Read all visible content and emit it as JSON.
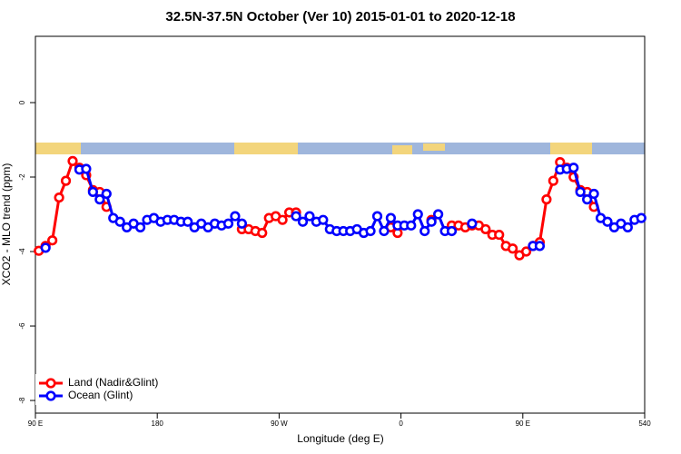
{
  "chart_data": {
    "type": "line",
    "title": "32.5N-37.5N October (Ver 10)   2015-01-01 to 2020-12-18",
    "xlabel": "Longitude (deg E)",
    "ylabel": "XCO2 - MLO trend (ppm)",
    "x": [
      92.5,
      97.5,
      102.5,
      107.5,
      112.5,
      117.5,
      122.5,
      127.5,
      132.5,
      137.5,
      142.5,
      147.5,
      152.5,
      157.5,
      162.5,
      167.5,
      172.5,
      177.5,
      182.5,
      187.5,
      192.5,
      197.5,
      202.5,
      207.5,
      212.5,
      217.5,
      222.5,
      227.5,
      232.5,
      237.5,
      242.5,
      247.5,
      252.5,
      257.5,
      262.5,
      267.5,
      272.5,
      277.5,
      282.5,
      287.5,
      292.5,
      297.5,
      302.5,
      307.5,
      312.5,
      317.5,
      322.5,
      327.5,
      332.5,
      337.5,
      342.5,
      347.5,
      352.5,
      357.5,
      362.5,
      367.5,
      372.5,
      377.5,
      382.5,
      387.5,
      392.5,
      397.5,
      402.5,
      407.5,
      412.5,
      417.5,
      422.5,
      427.5,
      432.5,
      437.5,
      442.5,
      447.5,
      452.5,
      457.5,
      462.5,
      467.5,
      472.5,
      477.5,
      482.5,
      487.5,
      492.5,
      497.5,
      502.5,
      507.5,
      512.5,
      517.5,
      522.5,
      527.5,
      532.5,
      537.5
    ],
    "series": [
      {
        "name": "Land (Nadir&Glint)",
        "color": "#ff0000",
        "values": [
          -3.98,
          -3.85,
          -3.7,
          -2.55,
          -2.1,
          -1.57,
          -1.75,
          -1.95,
          -2.35,
          -2.4,
          -2.8,
          null,
          null,
          null,
          null,
          null,
          null,
          null,
          null,
          null,
          null,
          null,
          null,
          null,
          null,
          null,
          null,
          null,
          null,
          null,
          -3.4,
          -3.4,
          -3.45,
          -3.5,
          -3.1,
          -3.05,
          -3.15,
          -2.95,
          -2.95,
          null,
          null,
          null,
          null,
          null,
          null,
          null,
          null,
          null,
          null,
          null,
          null,
          null,
          -3.35,
          -3.5,
          null,
          null,
          null,
          null,
          -3.15,
          null,
          null,
          -3.3,
          -3.3,
          -3.35,
          -3.3,
          -3.3,
          -3.4,
          -3.55,
          -3.55,
          -3.85,
          -3.92,
          -4.1,
          -4.0,
          -3.85,
          -3.75,
          -2.6,
          -2.1,
          -1.6,
          -1.75,
          -2.0,
          -2.35,
          -2.4,
          -2.8,
          null,
          null,
          null,
          null,
          null,
          null,
          null
        ]
      },
      {
        "name": "Ocean (Glint)",
        "color": "#0000ff",
        "values": [
          null,
          -3.9,
          null,
          null,
          null,
          null,
          -1.8,
          -1.78,
          -2.4,
          -2.6,
          -2.45,
          -3.1,
          -3.2,
          -3.35,
          -3.25,
          -3.35,
          -3.15,
          -3.1,
          -3.2,
          -3.15,
          -3.15,
          -3.2,
          -3.2,
          -3.35,
          -3.25,
          -3.35,
          -3.25,
          -3.3,
          -3.25,
          -3.05,
          -3.25,
          null,
          null,
          null,
          null,
          null,
          null,
          null,
          -3.05,
          -3.2,
          -3.05,
          -3.2,
          -3.15,
          -3.4,
          -3.45,
          -3.45,
          -3.45,
          -3.4,
          -3.5,
          -3.45,
          -3.05,
          -3.45,
          -3.1,
          -3.3,
          -3.3,
          -3.3,
          -3.0,
          -3.45,
          -3.2,
          -3.0,
          -3.45,
          -3.45,
          null,
          null,
          -3.25,
          null,
          null,
          null,
          null,
          null,
          null,
          null,
          null,
          -3.85,
          -3.85,
          null,
          null,
          -1.8,
          -1.78,
          -1.75,
          -2.4,
          -2.6,
          -2.45,
          -3.1,
          -3.2,
          -3.35,
          -3.25,
          -3.35,
          -3.15,
          -3.1
        ]
      }
    ],
    "xlim": [
      90,
      540
    ],
    "xticks": [
      {
        "value": 90,
        "label": "90 E"
      },
      180,
      {
        "value": 270,
        "label": "90 W"
      },
      {
        "value": 360,
        "label": "0"
      },
      {
        "value": 450,
        "label": "90 E"
      },
      540
    ],
    "ylim": [
      -8.34,
      1.78
    ],
    "yticks": [
      -8,
      -6,
      -4,
      -2,
      0
    ],
    "legend": "bottom-left"
  }
}
